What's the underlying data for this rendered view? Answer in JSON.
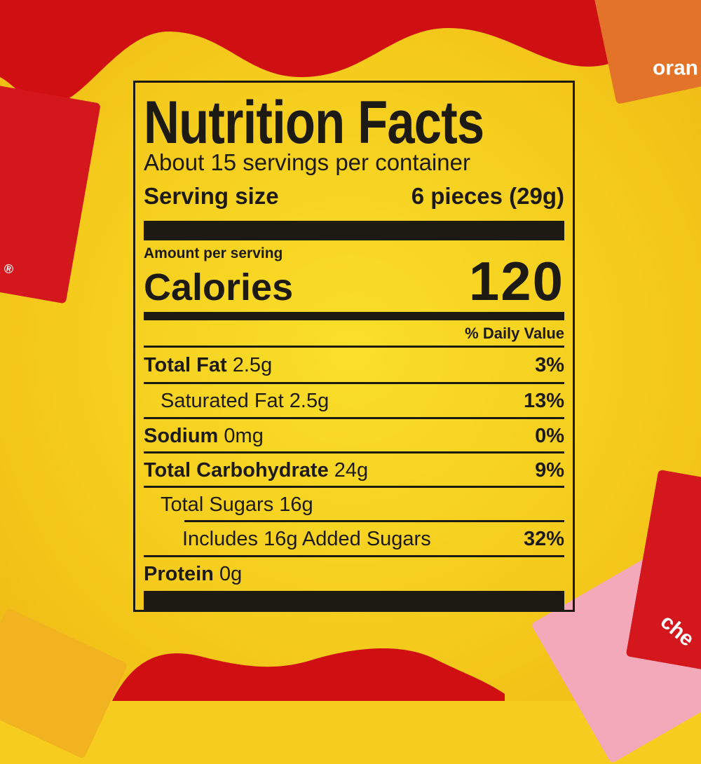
{
  "label": {
    "title": "Nutrition Facts",
    "servings_per_container": "About 15 servings per container",
    "serving_size_label": "Serving size",
    "serving_size_value": "6 pieces (29g)",
    "amount_per_serving": "Amount per serving",
    "calories_label": "Calories",
    "calories_value": "120",
    "daily_value_header": "% Daily Value",
    "nutrients": [
      {
        "name": "Total Fat",
        "amount": "2.5g",
        "dv": "3%"
      },
      {
        "name": "Saturated Fat 2.5g",
        "amount": "",
        "dv": "13%"
      },
      {
        "name": "Sodium",
        "amount": "0mg",
        "dv": "0%"
      },
      {
        "name": "Total Carbohydrate",
        "amount": "24g",
        "dv": "9%"
      },
      {
        "name": "Total Sugars 16g",
        "amount": "",
        "dv": ""
      },
      {
        "name": "Includes 16g Added Sugars",
        "amount": "",
        "dv": "32%"
      },
      {
        "name": "Protein",
        "amount": "0g",
        "dv": ""
      }
    ]
  },
  "candies": {
    "orange_text": "oran",
    "cherry_text": "che",
    "registered_mark": "®"
  },
  "colors": {
    "background": "#f6cd1e",
    "red": "#cf0f12",
    "ink": "#1d1a14",
    "orange": "#e4732a",
    "pink": "#f3a9ba"
  }
}
